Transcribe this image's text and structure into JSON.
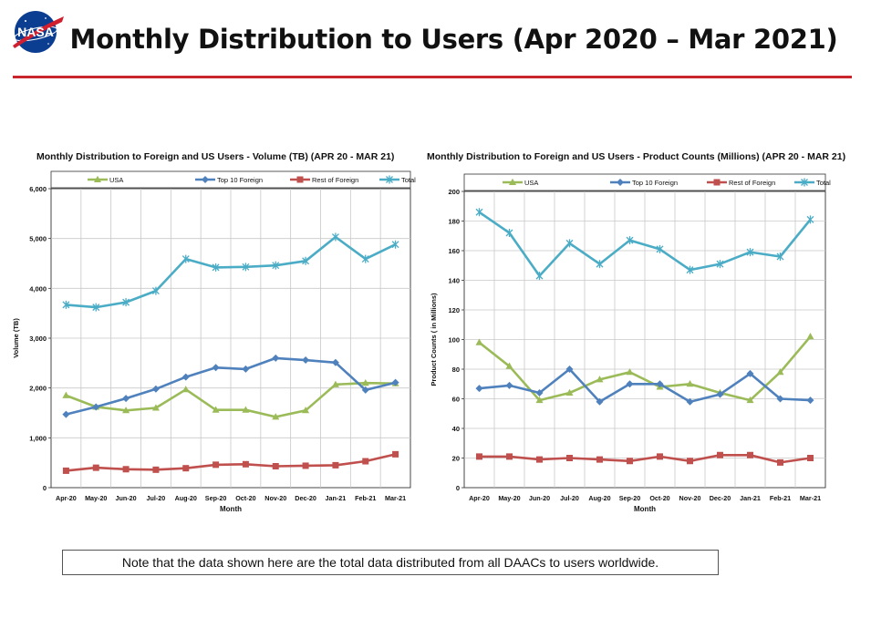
{
  "header": {
    "logo_text": "NASA",
    "title": "Monthly Distribution to Users (Apr 2020 – Mar 2021)"
  },
  "note": "Note that the data shown here are the total data distributed from all DAACs to users worldwide.",
  "chart_data": [
    {
      "type": "line",
      "title": "Monthly Distribution to Foreign and US Users - Volume  (TB) (APR 20 - MAR 21)",
      "xlabel": "Month",
      "ylabel": "Volume (TB)",
      "ylim": [
        0,
        6000
      ],
      "yticks": [
        0,
        1000,
        2000,
        3000,
        4000,
        5000,
        6000
      ],
      "ytick_labels": [
        "0",
        "1,000",
        "2,000",
        "3,000",
        "4,000",
        "5,000",
        "6,000"
      ],
      "grid": true,
      "legend": "top",
      "categories": [
        "Apr-20",
        "May-20",
        "Jun-20",
        "Jul-20",
        "Aug-20",
        "Sep-20",
        "Oct-20",
        "Nov-20",
        "Dec-20",
        "Jan-21",
        "Feb-21",
        "Mar-21"
      ],
      "series": [
        {
          "name": "USA",
          "color": "#9bbb59",
          "marker": "triangle",
          "values": [
            1850,
            1620,
            1550,
            1600,
            1970,
            1560,
            1560,
            1420,
            1550,
            2070,
            2100,
            2090
          ]
        },
        {
          "name": "Top 10 Foreign",
          "color": "#4f81bd",
          "marker": "diamond",
          "values": [
            1470,
            1620,
            1790,
            1980,
            2220,
            2410,
            2380,
            2600,
            2560,
            2510,
            1960,
            2110
          ]
        },
        {
          "name": "Rest of Foreign",
          "color": "#c0504d",
          "marker": "square",
          "values": [
            340,
            400,
            370,
            360,
            390,
            460,
            470,
            430,
            440,
            450,
            530,
            670
          ]
        },
        {
          "name": "Total",
          "color": "#4bacc6",
          "marker": "star",
          "values": [
            3670,
            3620,
            3720,
            3950,
            4590,
            4420,
            4430,
            4460,
            4550,
            5030,
            4590,
            4880
          ]
        }
      ]
    },
    {
      "type": "line",
      "title": "Monthly Distribution to Foreign and US Users - Product Counts (Millions) (APR 20 - MAR 21)",
      "xlabel": "Month",
      "ylabel": "Product Counts ( in Millions)",
      "ylim": [
        0,
        200
      ],
      "yticks": [
        0,
        20,
        40,
        60,
        80,
        100,
        120,
        140,
        160,
        180,
        200
      ],
      "ytick_labels": [
        "0",
        "20",
        "40",
        "60",
        "80",
        "100",
        "120",
        "140",
        "160",
        "180",
        "200"
      ],
      "grid": true,
      "legend": "top",
      "categories": [
        "Apr-20",
        "May-20",
        "Jun-20",
        "Jul-20",
        "Aug-20",
        "Sep-20",
        "Oct-20",
        "Nov-20",
        "Dec-20",
        "Jan-21",
        "Feb-21",
        "Mar-21"
      ],
      "series": [
        {
          "name": "USA",
          "color": "#9bbb59",
          "marker": "triangle",
          "values": [
            98,
            82,
            59,
            64,
            73,
            78,
            68,
            70,
            64,
            59,
            78,
            102
          ]
        },
        {
          "name": "Top 10 Foreign",
          "color": "#4f81bd",
          "marker": "diamond",
          "values": [
            67,
            69,
            64,
            80,
            58,
            70,
            70,
            58,
            63,
            77,
            60,
            59
          ]
        },
        {
          "name": "Rest of Foreign",
          "color": "#c0504d",
          "marker": "square",
          "values": [
            21,
            21,
            19,
            20,
            19,
            18,
            21,
            18,
            22,
            22,
            17,
            20
          ]
        },
        {
          "name": "Total",
          "color": "#4bacc6",
          "marker": "star",
          "values": [
            186,
            172,
            143,
            165,
            151,
            167,
            161,
            147,
            151,
            159,
            156,
            181
          ]
        }
      ]
    }
  ]
}
